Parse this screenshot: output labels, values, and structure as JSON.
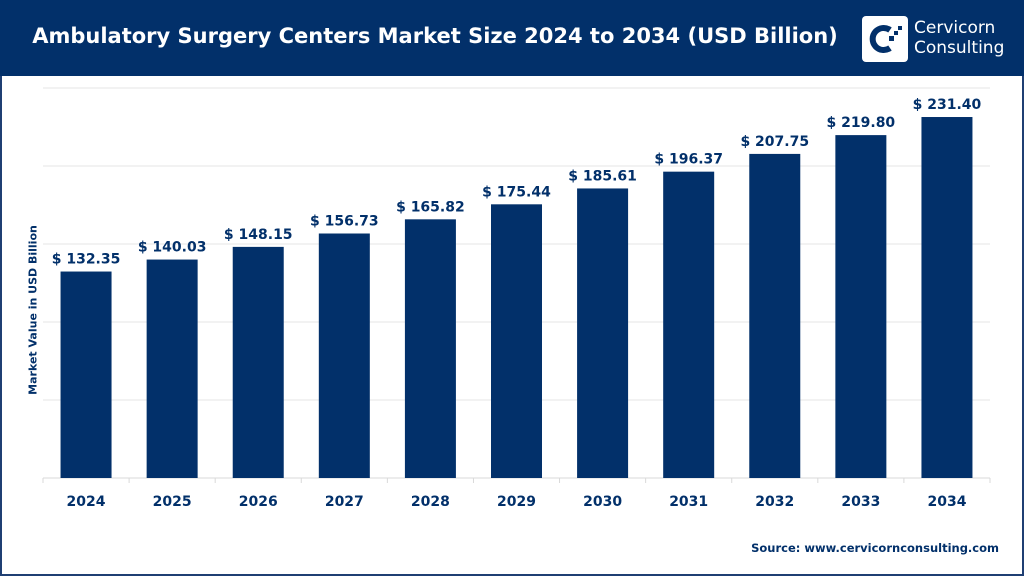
{
  "header": {
    "logo_text_line1": "Cervicorn",
    "logo_text_line2": "Consulting"
  },
  "source": "Source: www.cervicornconsulting.com",
  "colors": {
    "bar": "#02306a",
    "header": "#02306a",
    "grid": "#e6e6e6"
  },
  "chart_data": {
    "type": "bar",
    "title": "Ambulatory Surgery Centers Market Size 2024 to 2034 (USD Billion)",
    "xlabel": "",
    "ylabel": "Market Value in USD Billion",
    "categories": [
      "2024",
      "2025",
      "2026",
      "2027",
      "2028",
      "2029",
      "2030",
      "2031",
      "2032",
      "2033",
      "2034"
    ],
    "values": [
      132.35,
      140.03,
      148.15,
      156.73,
      165.82,
      175.44,
      185.61,
      196.37,
      207.75,
      219.8,
      231.4
    ],
    "data_labels": [
      "$ 132.35",
      "$ 140.03",
      "$ 148.15",
      "$ 156.73",
      "$ 165.82",
      "$ 175.44",
      "$ 185.61",
      "$ 196.37",
      "$ 207.75",
      "$ 219.80",
      "$ 231.40"
    ],
    "ylim": [
      0,
      250
    ],
    "grid": true,
    "y_tick_labels_shown": false,
    "legend": "none"
  }
}
